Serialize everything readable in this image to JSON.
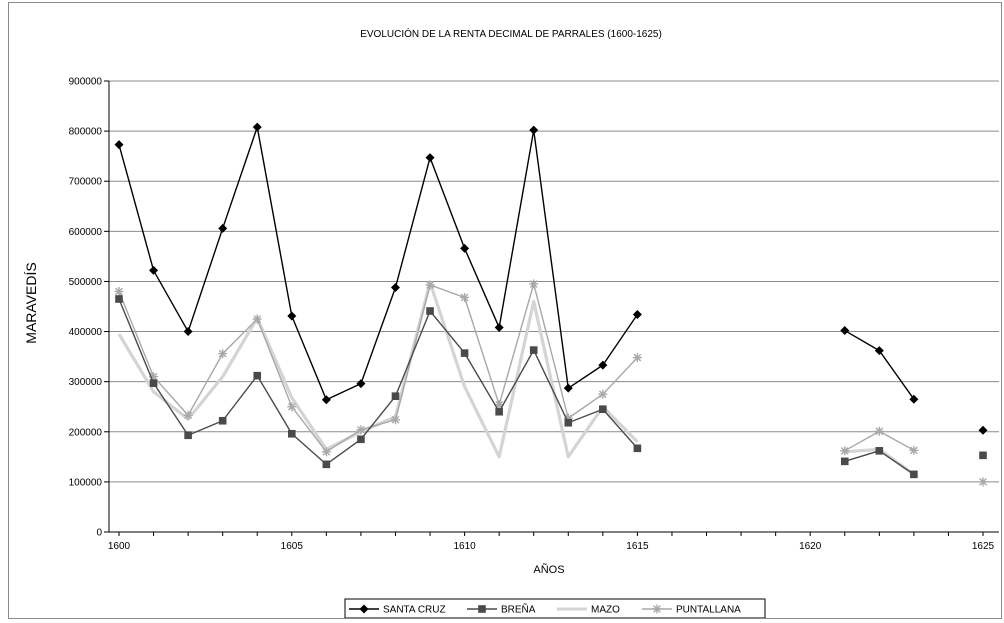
{
  "chart_data": {
    "type": "line",
    "title": "EVOLUCIÓN DE LA RENTA DECIMAL DE PARRALES (1600-1625)",
    "xlabel": "AÑOS",
    "ylabel": "MARAVEDÍS",
    "xlim": [
      1600,
      1625
    ],
    "ylim": [
      0,
      900000
    ],
    "x_ticks": [
      "1600",
      "1605",
      "1610",
      "1615",
      "1620",
      "1625"
    ],
    "y_ticks": [
      "0",
      "100000",
      "200000",
      "300000",
      "400000",
      "500000",
      "600000",
      "700000",
      "800000",
      "900000"
    ],
    "grid": true,
    "legend_position": "bottom",
    "x": [
      1600,
      1601,
      1602,
      1603,
      1604,
      1605,
      1606,
      1607,
      1608,
      1609,
      1610,
      1611,
      1612,
      1613,
      1614,
      1615,
      1616,
      1617,
      1618,
      1619,
      1620,
      1621,
      1622,
      1623,
      1624,
      1625
    ],
    "series": [
      {
        "name": "SANTA CRUZ",
        "color": "#000000",
        "marker": "diamond",
        "values": [
          773000,
          522000,
          400000,
          606000,
          808000,
          431000,
          264000,
          296000,
          488000,
          747000,
          566000,
          408000,
          802000,
          287000,
          333000,
          434000,
          null,
          null,
          null,
          null,
          null,
          402000,
          362000,
          265000,
          null,
          203000
        ]
      },
      {
        "name": "BREÑA",
        "color": "#4a4a4a",
        "marker": "square",
        "values": [
          465000,
          297000,
          193000,
          222000,
          312000,
          196000,
          135000,
          185000,
          271000,
          441000,
          357000,
          240000,
          363000,
          218000,
          245000,
          167000,
          null,
          null,
          null,
          null,
          null,
          141000,
          162000,
          115000,
          null,
          153000
        ]
      },
      {
        "name": "MAZO",
        "color": "#d4d4d4",
        "marker": "none",
        "values": [
          395000,
          280000,
          225000,
          310000,
          427000,
          268000,
          165000,
          200000,
          230000,
          498000,
          290000,
          150000,
          460000,
          150000,
          250000,
          180000,
          null,
          null,
          null,
          null,
          null,
          160000,
          165000,
          115000,
          null,
          null
        ]
      },
      {
        "name": "PUNTALLANA",
        "color": "#a8a8a8",
        "marker": "star",
        "values": [
          480000,
          310000,
          233000,
          356000,
          425000,
          250000,
          160000,
          204000,
          224000,
          493000,
          468000,
          254000,
          495000,
          227000,
          275000,
          348000,
          null,
          null,
          null,
          null,
          null,
          162000,
          201000,
          163000,
          null,
          100000
        ]
      }
    ]
  }
}
